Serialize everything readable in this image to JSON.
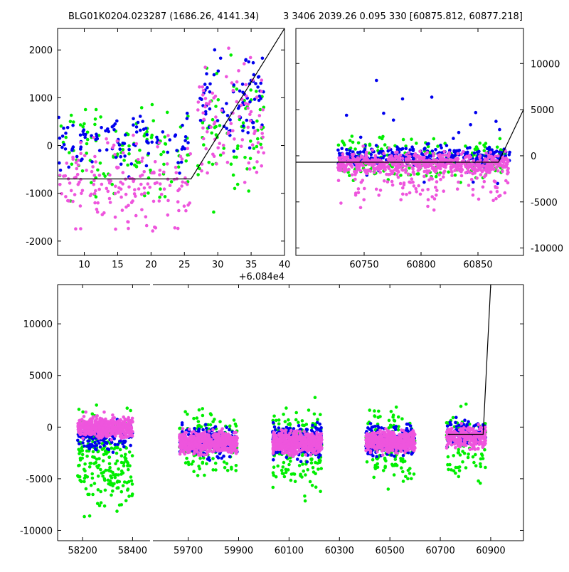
{
  "header": {
    "left_title": "BLG01K0204.023287 (1686.26, 4141.34)",
    "right_title": "3 3406 2039.26 0.095 330 [60875.812, 60877.218]"
  },
  "colors": {
    "green": "#00ee00",
    "blue": "#0000ee",
    "pink": "#ee55dd",
    "model": "#000000"
  },
  "chart_data": [
    {
      "type": "scatter",
      "name": "top-left-zoom",
      "xlim": [
        6,
        40
      ],
      "ylim": [
        -2300,
        2450
      ],
      "xticks": [
        10,
        15,
        20,
        25,
        30,
        35,
        40
      ],
      "yticks": [
        -2000,
        -1000,
        0,
        1000,
        2000
      ],
      "offset_text": "+6.084e4",
      "model_line": {
        "x": [
          6,
          26,
          40
        ],
        "y": [
          -700,
          -700,
          2450
        ]
      },
      "series": [
        {
          "color_key": "green",
          "clusters": [
            {
              "x": [
                6,
                26
              ],
              "y": [
                -1500,
                1200
              ],
              "n": 110
            },
            {
              "x": [
                27,
                37
              ],
              "y": [
                -1800,
                2300
              ],
              "n": 70
            }
          ]
        },
        {
          "color_key": "blue",
          "clusters": [
            {
              "x": [
                6,
                26
              ],
              "y": [
                -800,
                1000
              ],
              "n": 100
            },
            {
              "x": [
                27,
                37
              ],
              "y": [
                -300,
                2300
              ],
              "n": 80
            }
          ]
        },
        {
          "color_key": "pink",
          "clusters": [
            {
              "x": [
                6,
                26
              ],
              "y": [
                -2100,
                500
              ],
              "n": 170
            },
            {
              "x": [
                27,
                37
              ],
              "y": [
                -1500,
                2300
              ],
              "n": 90
            }
          ]
        }
      ]
    },
    {
      "type": "scatter",
      "name": "top-right-zoom",
      "xlim": [
        60690,
        60890
      ],
      "ylim": [
        -10800,
        13800
      ],
      "xticks": [
        60750,
        60800,
        60850
      ],
      "yticks": [
        -10000,
        -5000,
        0,
        5000,
        10000
      ],
      "model_line": {
        "x": [
          60690,
          60868,
          60890
        ],
        "y": [
          -700,
          -700,
          5000
        ]
      },
      "series": [
        {
          "color_key": "green",
          "clusters": [
            {
              "x": [
                60727,
                60878
              ],
              "y": [
                -4000,
                3000
              ],
              "n": 220
            }
          ]
        },
        {
          "color_key": "blue",
          "clusters": [
            {
              "x": [
                60727,
                60878
              ],
              "y": [
                -1500,
                1500
              ],
              "n": 300
            },
            {
              "x": [
                60727,
                60878
              ],
              "y": [
                -9000,
                11000
              ],
              "n": 25
            }
          ]
        },
        {
          "color_key": "pink",
          "clusters": [
            {
              "x": [
                60727,
                60878
              ],
              "y": [
                -2500,
                800
              ],
              "n": 550
            },
            {
              "x": [
                60727,
                60878
              ],
              "y": [
                -7000,
                2500
              ],
              "n": 140
            }
          ]
        }
      ]
    },
    {
      "type": "scatter",
      "name": "bottom-full",
      "segments": [
        {
          "xlim": [
            58100,
            58470
          ],
          "xticks": [
            58200,
            58400
          ]
        },
        {
          "xlim": [
            59560,
            61030
          ],
          "xticks": [
            59700,
            59900,
            60100,
            60300,
            60500,
            60700,
            60900
          ]
        }
      ],
      "ylim": [
        -11000,
        13800
      ],
      "yticks": [
        -10000,
        -5000,
        0,
        5000,
        10000
      ],
      "model_line": {
        "x": [
          60730,
          60870,
          60900
        ],
        "y": [
          -700,
          -700,
          13800
        ]
      },
      "series": [
        {
          "color_key": "green",
          "clusters": [
            {
              "x": [
                58180,
                58400
              ],
              "y": [
                -10000,
                3000
              ],
              "n": 220
            },
            {
              "x": [
                59665,
                59895
              ],
              "y": [
                -6000,
                3000
              ],
              "n": 140
            },
            {
              "x": [
                60035,
                60230
              ],
              "y": [
                -8000,
                4000
              ],
              "n": 180
            },
            {
              "x": [
                60405,
                60600
              ],
              "y": [
                -7000,
                3500
              ],
              "n": 150
            },
            {
              "x": [
                60725,
                60880
              ],
              "y": [
                -7000,
                3000
              ],
              "n": 80
            }
          ]
        },
        {
          "color_key": "blue",
          "clusters": [
            {
              "x": [
                58180,
                58400
              ],
              "y": [
                -3000,
                1000
              ],
              "n": 130
            },
            {
              "x": [
                59665,
                59895
              ],
              "y": [
                -3500,
                700
              ],
              "n": 260
            },
            {
              "x": [
                60035,
                60230
              ],
              "y": [
                -3500,
                700
              ],
              "n": 260
            },
            {
              "x": [
                60405,
                60600
              ],
              "y": [
                -3500,
                700
              ],
              "n": 240
            },
            {
              "x": [
                60725,
                60880
              ],
              "y": [
                -2500,
                1500
              ],
              "n": 100
            }
          ]
        },
        {
          "color_key": "pink",
          "clusters": [
            {
              "x": [
                58180,
                58400
              ],
              "y": [
                -1500,
                1500
              ],
              "n": 450
            },
            {
              "x": [
                59665,
                59895
              ],
              "y": [
                -3000,
                0
              ],
              "n": 550
            },
            {
              "x": [
                60035,
                60230
              ],
              "y": [
                -3000,
                0
              ],
              "n": 550
            },
            {
              "x": [
                60405,
                60600
              ],
              "y": [
                -2800,
                0
              ],
              "n": 520
            },
            {
              "x": [
                60725,
                60880
              ],
              "y": [
                -2500,
                500
              ],
              "n": 260
            }
          ]
        }
      ]
    }
  ]
}
